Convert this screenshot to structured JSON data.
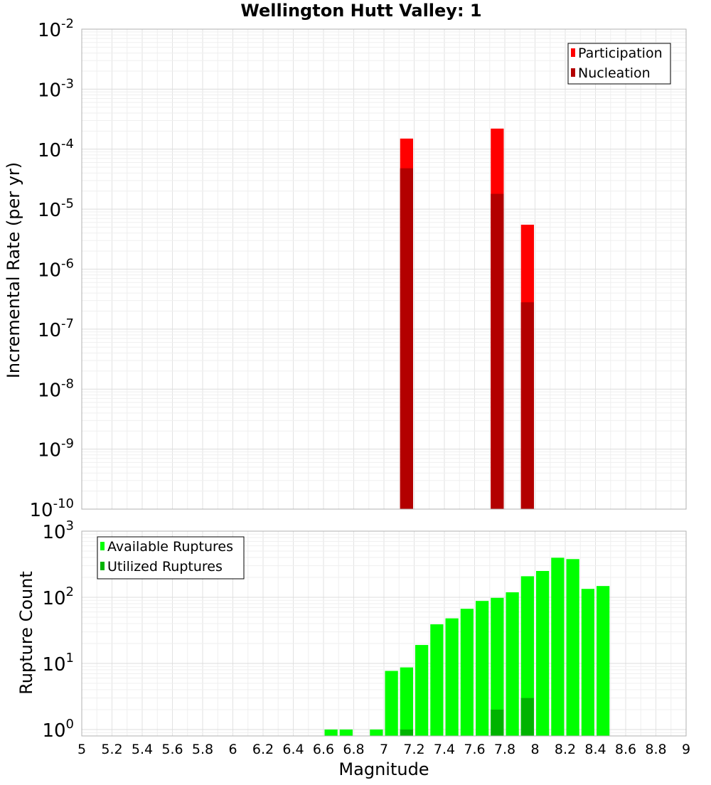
{
  "chart_data": [
    {
      "type": "bar",
      "title": "Wellington Hutt Valley: 1",
      "ylabel": "Incremental Rate (per yr)",
      "xlabel": "",
      "xlim": [
        5,
        9
      ],
      "ylim": [
        1e-10,
        0.01
      ],
      "yscale": "log",
      "bin_width": 0.1,
      "grid": true,
      "legend": "top-right",
      "series": [
        {
          "name": "Participation",
          "color": "#ff0000",
          "x": [
            7.15,
            7.75,
            7.95
          ],
          "values": [
            0.00015,
            0.00022,
            5.5e-06
          ]
        },
        {
          "name": "Nucleation",
          "color": "#b30000",
          "x": [
            7.15,
            7.75,
            7.95
          ],
          "values": [
            4.8e-05,
            1.8e-05,
            2.8e-07
          ]
        }
      ]
    },
    {
      "type": "bar",
      "title": "",
      "ylabel": "Rupture Count",
      "xlabel": "Magnitude",
      "xlim": [
        5,
        9
      ],
      "ylim": [
        0.8,
        1000
      ],
      "yscale": "log",
      "bin_width": 0.1,
      "grid": true,
      "legend": "top-left",
      "xticks": [
        "5",
        "5.2",
        "5.4",
        "5.6",
        "5.8",
        "6",
        "6.2",
        "6.4",
        "6.6",
        "6.8",
        "7",
        "7.2",
        "7.4",
        "7.6",
        "7.8",
        "8",
        "8.2",
        "8.4",
        "8.6",
        "8.8",
        "9"
      ],
      "series": [
        {
          "name": "Available Ruptures",
          "color": "#00ff00",
          "x": [
            6.65,
            6.75,
            6.95,
            7.05,
            7.15,
            7.25,
            7.35,
            7.45,
            7.55,
            7.65,
            7.75,
            7.85,
            7.95,
            8.05,
            8.15,
            8.25,
            8.35,
            8.45
          ],
          "values": [
            1,
            1,
            1,
            7.7,
            8.7,
            19,
            39,
            48,
            67,
            88,
            98,
            119,
            208,
            250,
            396,
            378,
            134,
            148
          ]
        },
        {
          "name": "Utilized Ruptures",
          "color": "#00b300",
          "x": [
            7.15,
            7.75,
            7.95
          ],
          "values": [
            1,
            2,
            3
          ]
        }
      ]
    }
  ]
}
